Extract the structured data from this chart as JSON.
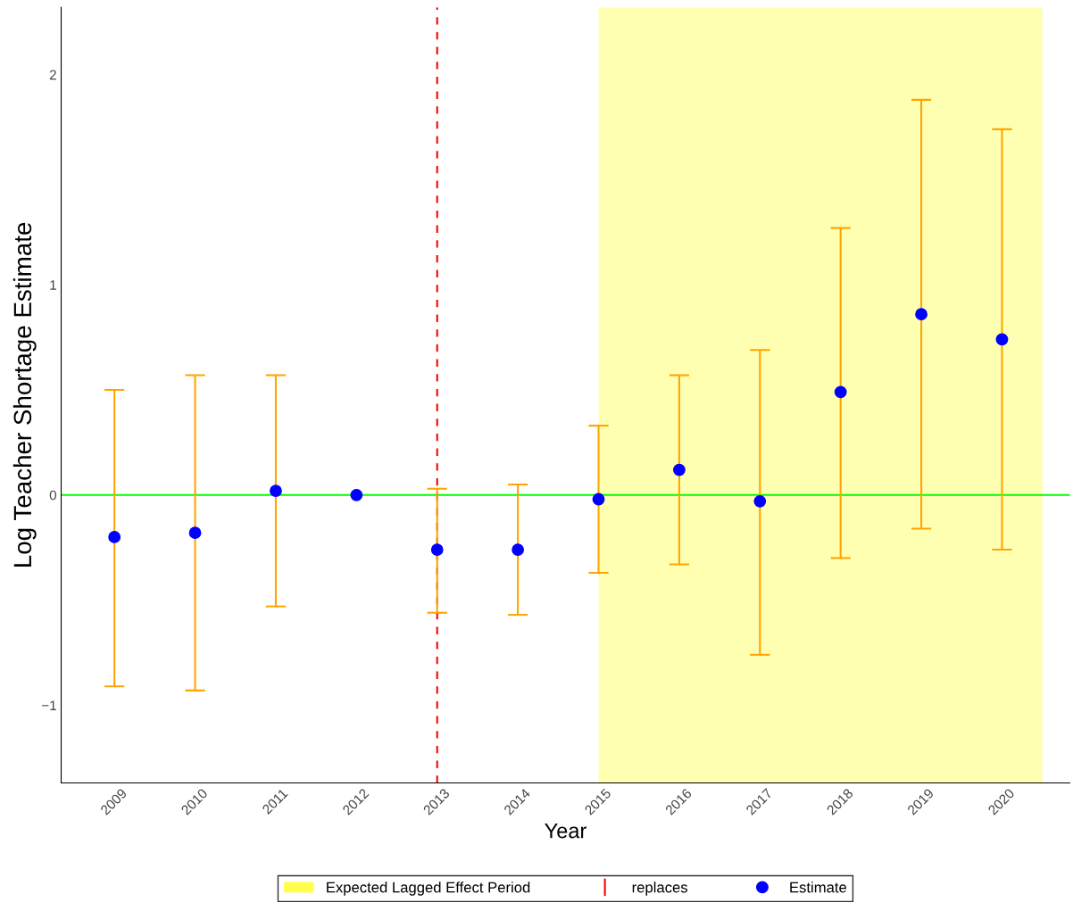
{
  "chart_data": {
    "type": "scatter",
    "xlabel": "Year",
    "ylabel": "Log Teacher Shortage Estimate",
    "x": [
      2009,
      2010,
      2011,
      2012,
      2013,
      2014,
      2015,
      2016,
      2017,
      2018,
      2019,
      2020
    ],
    "series": [
      {
        "name": "Estimate",
        "color": "#0000ff",
        "marker": "circle",
        "values": [
          -0.2,
          -0.18,
          0.02,
          0,
          -0.26,
          -0.26,
          -0.02,
          0.12,
          -0.03,
          0.49,
          0.86,
          0.74
        ],
        "errors": [
          [
            -0.91,
            0.5
          ],
          [
            -0.93,
            0.57
          ],
          [
            -0.53,
            0.57
          ],
          null,
          [
            -0.56,
            0.03
          ],
          [
            -0.57,
            0.05
          ],
          [
            -0.37,
            0.33
          ],
          [
            -0.33,
            0.57
          ],
          [
            -0.76,
            0.69
          ],
          [
            -0.3,
            1.27
          ],
          [
            -0.16,
            1.88
          ],
          [
            -0.26,
            1.74
          ]
        ]
      }
    ],
    "xlim": [
      2008.34,
      2020.84
    ],
    "xticks": [
      2009,
      2010,
      2011,
      2012,
      2013,
      2014,
      2015,
      2016,
      2017,
      2018,
      2019,
      2020
    ],
    "ylim": [
      -1.37,
      2.32
    ],
    "yticks": [
      -1,
      0,
      1,
      2
    ],
    "ref_lines": [
      {
        "axis": "x",
        "value": 2013,
        "color": "#ff0000",
        "line_style": "dashed",
        "label": "replaces"
      },
      {
        "axis": "y",
        "value": 0,
        "color": "#00ff00",
        "line_style": "solid"
      }
    ],
    "bands": [
      {
        "axis": "x",
        "from": 2015,
        "to": 2020.5,
        "color": "#ffff00",
        "label": "Expected Lagged Effect Period"
      }
    ],
    "grid": false,
    "legend": "bottom"
  }
}
